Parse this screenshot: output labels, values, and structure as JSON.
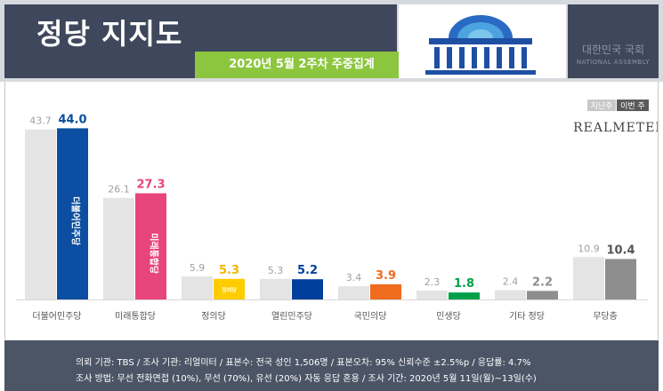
{
  "header": {
    "title": "정당 지지도",
    "subtitle": "2020년 5월 2주차 주중집계",
    "org_name_kr": "대한민국 국회",
    "org_name_en": "NATIONAL ASSEMBLY"
  },
  "legend": {
    "prev": "지난주",
    "curr": "이번 주"
  },
  "brand": "REALMETER",
  "chart_data": {
    "type": "bar",
    "categories": [
      "더불어민주당",
      "미래통합당",
      "정의당",
      "열린민주당",
      "국민의당",
      "민생당",
      "기타 정당",
      "무당층"
    ],
    "series": [
      {
        "name": "지난주",
        "values": [
          43.7,
          26.1,
          5.9,
          5.3,
          3.4,
          2.3,
          2.4,
          10.9
        ]
      },
      {
        "name": "이번 주",
        "values": [
          44.0,
          27.3,
          5.3,
          5.2,
          3.9,
          1.8,
          2.2,
          10.4
        ]
      }
    ],
    "bar_labels": [
      "더불어민주당",
      "미래통합당",
      "정의당",
      "",
      "",
      "",
      "",
      ""
    ],
    "colors": {
      "prev": "#e4e4e4",
      "curr": [
        "#0b4ea2",
        "#e8457c",
        "#ffcc00",
        "#003e9b",
        "#ef6b1e",
        "#00a04a",
        "#8e8e8e",
        "#8e8e8e"
      ],
      "value_label": [
        "#0b4ea2",
        "#e8457c",
        "#f2b600",
        "#003e9b",
        "#ef6b1e",
        "#00a04a",
        "#8e8e8e",
        "#555555"
      ]
    },
    "ylim": [
      0,
      45
    ]
  },
  "footer": {
    "line1": "의뢰 기관: TBS / 조사 기관: 리얼미터 / 표본수: 전국 성인 1,506명 / 표본오차: 95% 신뢰수준 ±2.5%p / 응답률: 4.7%",
    "line2": "조사 방법: 무선 전화면접 (10%), 무선 (70%), 유선 (20%) 자동 응답 혼용 / 조사 기간: 2020년 5월 11일(월)~13일(수)"
  }
}
